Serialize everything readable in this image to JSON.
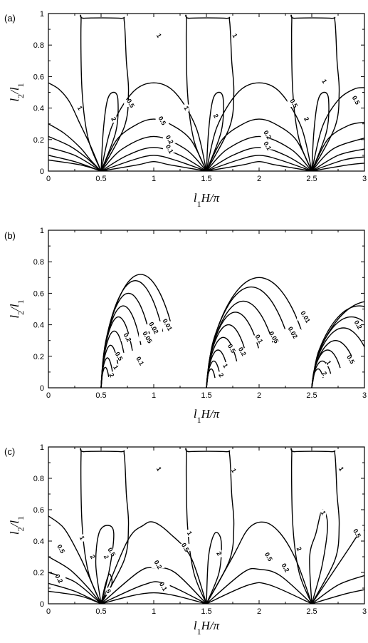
{
  "chart_data": [
    {
      "type": "contour",
      "panel_label": "(a)",
      "xlabel": "l1H/π",
      "ylabel": "l2/l1",
      "xlim": [
        0,
        3
      ],
      "ylim": [
        0,
        1
      ],
      "xticks": [
        "0",
        "0.5",
        "1",
        "1.5",
        "2",
        "2.5",
        "3"
      ],
      "yticks": [
        "0",
        "0.2",
        "0.4",
        "0.6",
        "0.8",
        "1"
      ],
      "contour_levels": [
        "1",
        "0.5",
        "2",
        "0.2",
        "0.1"
      ],
      "labeled_contours": [
        {
          "text": "1",
          "x": 0.3,
          "y": 0.4
        },
        {
          "text": "2",
          "x": 0.62,
          "y": 0.33
        },
        {
          "text": "0.5",
          "x": 0.78,
          "y": 0.43
        },
        {
          "text": "1",
          "x": 1.05,
          "y": 0.86
        },
        {
          "text": "0.5",
          "x": 1.08,
          "y": 0.32
        },
        {
          "text": "0.2",
          "x": 1.15,
          "y": 0.2
        },
        {
          "text": "0.1",
          "x": 1.15,
          "y": 0.14
        },
        {
          "text": "1",
          "x": 1.31,
          "y": 0.4
        },
        {
          "text": "2",
          "x": 1.59,
          "y": 0.35
        },
        {
          "text": "1",
          "x": 1.77,
          "y": 0.86
        },
        {
          "text": "0.5",
          "x": 2.33,
          "y": 0.43
        },
        {
          "text": "0.2",
          "x": 2.08,
          "y": 0.23
        },
        {
          "text": "0.1",
          "x": 2.08,
          "y": 0.16
        },
        {
          "text": "2",
          "x": 2.45,
          "y": 0.33
        },
        {
          "text": "1",
          "x": 2.62,
          "y": 0.57
        },
        {
          "text": "0.5",
          "x": 2.92,
          "y": 0.45
        }
      ]
    },
    {
      "type": "contour",
      "panel_label": "(b)",
      "xlabel": "l1H/π",
      "ylabel": "l2/l1",
      "xlim": [
        0,
        3
      ],
      "ylim": [
        0,
        1
      ],
      "xticks": [
        "0",
        "0.5",
        "1",
        "1.5",
        "2",
        "2.5",
        "3"
      ],
      "yticks": [
        "0",
        "0.2",
        "0.4",
        "0.6",
        "0.8",
        "1"
      ],
      "contour_levels": [
        "0.01",
        "0.02",
        "0.05",
        "0.1",
        "0.2",
        "0.5",
        "1",
        "2"
      ],
      "labeled_contours": [
        {
          "text": "2",
          "x": 0.6,
          "y": 0.08
        },
        {
          "text": "1",
          "x": 0.64,
          "y": 0.13
        },
        {
          "text": "0.5",
          "x": 0.67,
          "y": 0.2
        },
        {
          "text": "0.2",
          "x": 0.75,
          "y": 0.32
        },
        {
          "text": "0.1",
          "x": 0.87,
          "y": 0.17
        },
        {
          "text": "0.05",
          "x": 0.94,
          "y": 0.32
        },
        {
          "text": "0.02",
          "x": 1.0,
          "y": 0.38
        },
        {
          "text": "0.01",
          "x": 1.13,
          "y": 0.4
        },
        {
          "text": "2",
          "x": 1.64,
          "y": 0.08
        },
        {
          "text": "1",
          "x": 1.68,
          "y": 0.14
        },
        {
          "text": "0.5",
          "x": 1.74,
          "y": 0.25
        },
        {
          "text": "0.2",
          "x": 1.84,
          "y": 0.23
        },
        {
          "text": "0.1",
          "x": 2.0,
          "y": 0.31
        },
        {
          "text": "0.05",
          "x": 2.14,
          "y": 0.32
        },
        {
          "text": "0.02",
          "x": 2.32,
          "y": 0.35
        },
        {
          "text": "0.01",
          "x": 2.44,
          "y": 0.45
        },
        {
          "text": "2",
          "x": 2.62,
          "y": 0.09
        },
        {
          "text": "1",
          "x": 2.66,
          "y": 0.16
        },
        {
          "text": "0.5",
          "x": 2.87,
          "y": 0.18
        },
        {
          "text": "0.2",
          "x": 2.94,
          "y": 0.4
        }
      ]
    },
    {
      "type": "contour",
      "panel_label": "(c)",
      "xlabel": "l1H/π",
      "ylabel": "l2/l1",
      "xlim": [
        0,
        3
      ],
      "ylim": [
        0,
        1
      ],
      "xticks": [
        "0",
        "0.5",
        "1",
        "1.5",
        "2",
        "2.5",
        "3"
      ],
      "yticks": [
        "0",
        "0.2",
        "0.4",
        "0.6",
        "0.8",
        "1"
      ],
      "contour_levels": [
        "1",
        "0.5",
        "2",
        "0.2",
        "0.1",
        "5"
      ],
      "labeled_contours": [
        {
          "text": "0.5",
          "x": 0.12,
          "y": 0.35
        },
        {
          "text": "0.2",
          "x": 0.1,
          "y": 0.16
        },
        {
          "text": "1",
          "x": 0.32,
          "y": 0.42
        },
        {
          "text": "2",
          "x": 0.42,
          "y": 0.3
        },
        {
          "text": "2",
          "x": 0.55,
          "y": 0.3
        },
        {
          "text": "0.5",
          "x": 0.6,
          "y": 0.33
        },
        {
          "text": "5",
          "x": 0.57,
          "y": 0.08
        },
        {
          "text": "1",
          "x": 1.05,
          "y": 0.86
        },
        {
          "text": "0.2",
          "x": 1.04,
          "y": 0.25
        },
        {
          "text": "0.1",
          "x": 1.09,
          "y": 0.11
        },
        {
          "text": "0.5",
          "x": 1.3,
          "y": 0.36
        },
        {
          "text": "1",
          "x": 1.34,
          "y": 0.45
        },
        {
          "text": "2",
          "x": 1.62,
          "y": 0.32
        },
        {
          "text": "1",
          "x": 1.76,
          "y": 0.85
        },
        {
          "text": "0.5",
          "x": 2.09,
          "y": 0.3
        },
        {
          "text": "2",
          "x": 2.38,
          "y": 0.35
        },
        {
          "text": "0.2",
          "x": 2.25,
          "y": 0.23
        },
        {
          "text": "1",
          "x": 2.61,
          "y": 0.58
        },
        {
          "text": "1",
          "x": 2.78,
          "y": 0.86
        },
        {
          "text": "0.5",
          "x": 2.93,
          "y": 0.45
        }
      ]
    }
  ]
}
